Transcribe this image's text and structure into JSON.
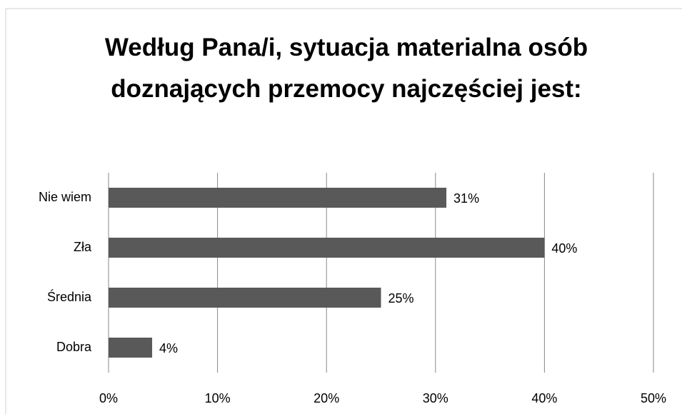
{
  "chart_data": {
    "type": "barh",
    "title": "Według Pana/i, sytuacja materialna osób doznających przemocy najczęściej jest:",
    "categories": [
      "Nie wiem",
      "Zła",
      "Średnia",
      "Dobra"
    ],
    "values": [
      31,
      40,
      25,
      4
    ],
    "value_labels": [
      "31%",
      "40%",
      "25%",
      "4%"
    ],
    "color": "#595959",
    "xlim": [
      0,
      50
    ],
    "xticks": [
      {
        "value": 0,
        "label": "0%"
      },
      {
        "value": 10,
        "label": "10%"
      },
      {
        "value": 20,
        "label": "20%"
      },
      {
        "value": 30,
        "label": "30%"
      },
      {
        "value": 40,
        "label": "40%"
      },
      {
        "value": 50,
        "label": "50%"
      }
    ],
    "grid": true
  }
}
